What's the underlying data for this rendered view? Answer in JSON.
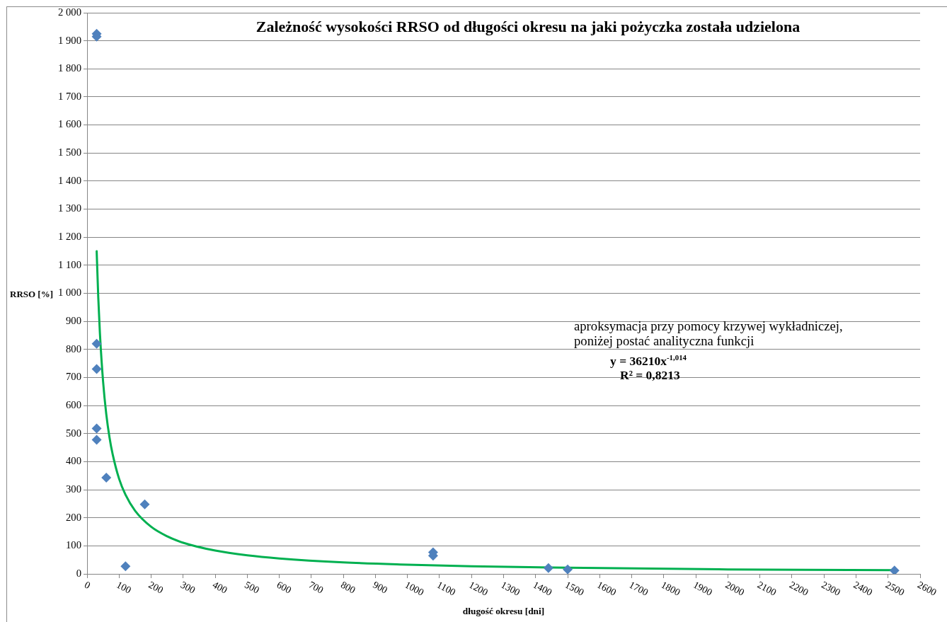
{
  "chart_data": {
    "type": "scatter",
    "title": "Zależność wysokości RRSO od długości okresu na jaki pożyczka została udzielona",
    "xlabel": "długość okresu [dni]",
    "ylabel": "RRSO [%]",
    "annotations": [
      "aproksymacja przy pomocy krzywej wykładniczej, poniżej postać analityczna funkcji",
      "y = 36210x$^{-1,014}$",
      "R² = 0,8213"
    ],
    "xlim": [
      0,
      2600
    ],
    "ylim": [
      0,
      2000
    ],
    "xticks": [
      0,
      100,
      200,
      300,
      400,
      500,
      600,
      700,
      800,
      900,
      1000,
      1100,
      1200,
      1300,
      1400,
      1500,
      1600,
      1700,
      1800,
      1900,
      2000,
      2100,
      2200,
      2300,
      2400,
      2500,
      2600
    ],
    "yticks": [
      0,
      100,
      200,
      300,
      400,
      500,
      600,
      700,
      800,
      900,
      {
        "value": 1000,
        "label": "1 000"
      },
      {
        "value": 1100,
        "label": "1 100"
      },
      {
        "value": 1200,
        "label": "1 200"
      },
      {
        "value": 1300,
        "label": "1 300"
      },
      {
        "value": 1400,
        "label": "1 400"
      },
      {
        "value": 1500,
        "label": "1 500"
      },
      {
        "value": 1600,
        "label": "1 600"
      },
      {
        "value": 1700,
        "label": "1 700"
      },
      {
        "value": 1800,
        "label": "1 800"
      },
      {
        "value": 1900,
        "label": "1 900"
      },
      {
        "value": 2000,
        "label": "2 000"
      }
    ],
    "grid": "y",
    "marker": "diamond",
    "series": [
      {
        "color": "#4f81bd",
        "x": [
          30,
          30,
          30,
          30,
          30,
          30,
          60,
          120,
          180,
          1080,
          1080,
          1440,
          1500,
          2520
        ],
        "values": [
          1925,
          1915,
          820,
          730,
          518,
          478,
          343,
          27,
          248,
          77,
          65,
          21,
          16,
          12
        ]
      },
      {
        "type": "line",
        "color": "#00b050",
        "marker": "none",
        "line_style": "solid",
        "x": [
          30,
          35,
          40,
          50,
          60,
          70,
          80,
          100,
          120,
          150,
          200,
          250,
          300,
          400,
          500,
          600,
          800,
          1000,
          1200,
          1500,
          2000,
          2520
        ],
        "values": [
          1150,
          985,
          860,
          686,
          569,
          487,
          426,
          339,
          282,
          225,
          168,
          134,
          111,
          83,
          66,
          55,
          41,
          33,
          27,
          22,
          16,
          13
        ]
      }
    ]
  }
}
